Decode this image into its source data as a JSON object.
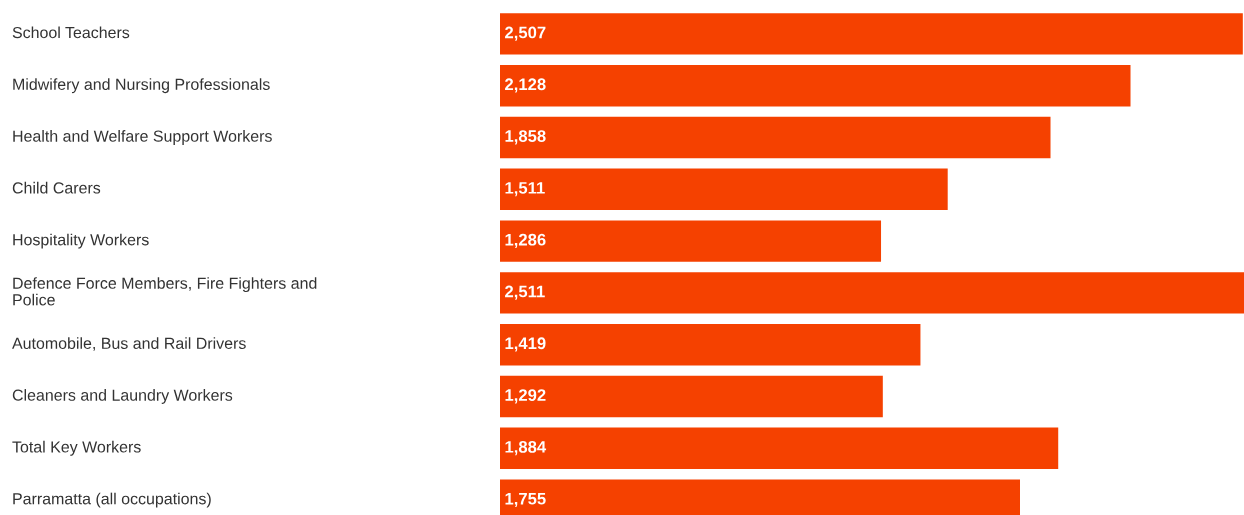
{
  "chart_data": {
    "type": "bar",
    "orientation": "horizontal",
    "value_labels": [
      "2,507",
      "2,128",
      "1,858",
      "1,511",
      "1,286",
      "2,511",
      "1,419",
      "1,292",
      "1,884",
      "1,755"
    ],
    "categories": [
      "School Teachers",
      "Midwifery and Nursing Professionals",
      "Health and Welfare Support Workers",
      "Child Carers",
      "Hospitality Workers",
      "Defence Force Members, Fire Fighters and\nPolice",
      "Automobile, Bus and Rail Drivers",
      "Cleaners and Laundry Workers",
      "Total Key Workers",
      "Parramatta (all occupations)"
    ],
    "values": [
      2507,
      2128,
      1858,
      1511,
      1286,
      2511,
      1419,
      1292,
      1884,
      1755
    ],
    "color": "#f54100"
  }
}
